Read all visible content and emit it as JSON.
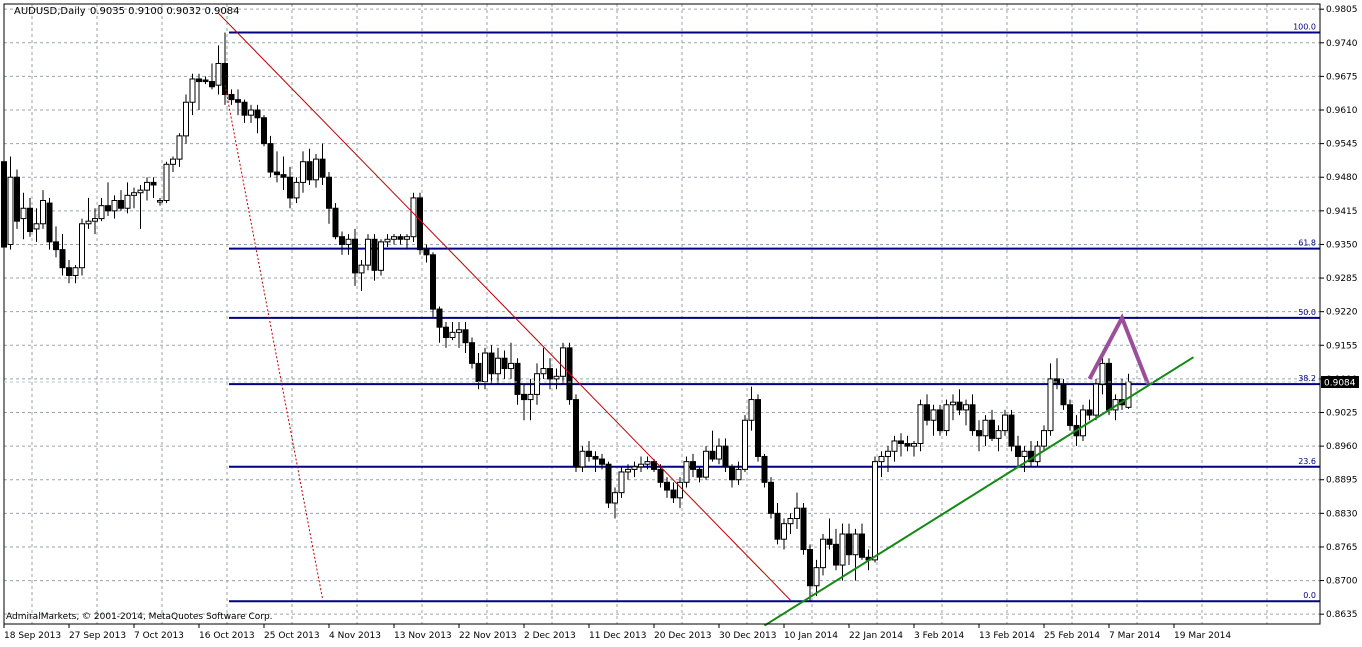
{
  "header": {
    "symbol": "AUDUSD,Daily",
    "ohlc": "0.9035 0.9100 0.9032 0.9084"
  },
  "footer": {
    "copyright": "AdmiralMarkets, © 2001-2014, MetaQuotes Software Corp."
  },
  "colors": {
    "background": "#ffffff",
    "grid": "#9aa3ad",
    "candle": "#000000",
    "fib": "#000080",
    "trend_down": "#c00000",
    "trend_up": "#138a13",
    "projection": "#9b4f9b",
    "price_tag_bg": "#000000",
    "price_tag_text": "#ffffff"
  },
  "chart_data": {
    "type": "candlestick",
    "symbol": "AUDUSD",
    "timeframe": "Daily",
    "current_price": "0.9084",
    "ylim": [
      0.8616,
      0.9815
    ],
    "y_ticks": [
      "0.9805",
      "0.9740",
      "0.9675",
      "0.9610",
      "0.9545",
      "0.9480",
      "0.9415",
      "0.9350",
      "0.9285",
      "0.9220",
      "0.9155",
      "0.9090",
      "0.9025",
      "0.8960",
      "0.8895",
      "0.8830",
      "0.8765",
      "0.8700",
      "0.8635"
    ],
    "x_ticks": [
      "18 Sep 2013",
      "27 Sep 2013",
      "7 Oct 2013",
      "16 Oct 2013",
      "25 Oct 2013",
      "4 Nov 2013",
      "13 Nov 2013",
      "22 Nov 2013",
      "2 Dec 2013",
      "11 Dec 2013",
      "20 Dec 2013",
      "30 Dec 2013",
      "10 Jan 2014",
      "22 Jan 2014",
      "3 Feb 2014",
      "13 Feb 2014",
      "25 Feb 2014",
      "7 Mar 2014",
      "19 Mar 2014"
    ],
    "fibonacci": [
      {
        "label": "100.0",
        "price": 0.976
      },
      {
        "label": "61.8",
        "price": 0.9342
      },
      {
        "label": "50.0",
        "price": 0.9208
      },
      {
        "label": "38.2",
        "price": 0.908
      },
      {
        "label": "23.6",
        "price": 0.892
      },
      {
        "label": "0.0",
        "price": 0.866
      }
    ],
    "trendlines": [
      {
        "name": "down",
        "style": "solid",
        "from": {
          "bar": 33,
          "price": 0.9797
        },
        "to": {
          "bar": 121,
          "price": 0.8662
        }
      },
      {
        "name": "down-steep",
        "style": "dashed",
        "from": {
          "bar": 34,
          "price": 0.9658
        },
        "to": {
          "bar": 49,
          "price": 0.8665
        }
      },
      {
        "name": "up",
        "style": "solid",
        "from": {
          "bar": 117,
          "price": 0.8613
        },
        "to": {
          "bar": 183,
          "price": 0.9132
        }
      }
    ],
    "projection": [
      {
        "bar": 167,
        "price": 0.909
      },
      {
        "bar": 172,
        "price": 0.9208
      },
      {
        "bar": 176,
        "price": 0.908
      }
    ],
    "ohlc": [
      {
        "o": 0.951,
        "h": 0.953,
        "l": 0.9335,
        "c": 0.9345
      },
      {
        "o": 0.935,
        "h": 0.952,
        "l": 0.934,
        "c": 0.948
      },
      {
        "o": 0.948,
        "h": 0.9495,
        "l": 0.938,
        "c": 0.9395
      },
      {
        "o": 0.94,
        "h": 0.945,
        "l": 0.936,
        "c": 0.942
      },
      {
        "o": 0.942,
        "h": 0.944,
        "l": 0.9365,
        "c": 0.9375
      },
      {
        "o": 0.938,
        "h": 0.942,
        "l": 0.9355,
        "c": 0.939
      },
      {
        "o": 0.939,
        "h": 0.9455,
        "l": 0.938,
        "c": 0.9435
      },
      {
        "o": 0.943,
        "h": 0.944,
        "l": 0.934,
        "c": 0.9355
      },
      {
        "o": 0.9355,
        "h": 0.9385,
        "l": 0.9325,
        "c": 0.934
      },
      {
        "o": 0.934,
        "h": 0.937,
        "l": 0.929,
        "c": 0.9305
      },
      {
        "o": 0.9305,
        "h": 0.932,
        "l": 0.9275,
        "c": 0.929
      },
      {
        "o": 0.929,
        "h": 0.931,
        "l": 0.9275,
        "c": 0.9305
      },
      {
        "o": 0.9305,
        "h": 0.94,
        "l": 0.929,
        "c": 0.939
      },
      {
        "o": 0.939,
        "h": 0.944,
        "l": 0.938,
        "c": 0.9395
      },
      {
        "o": 0.9395,
        "h": 0.942,
        "l": 0.937,
        "c": 0.94
      },
      {
        "o": 0.94,
        "h": 0.944,
        "l": 0.9395,
        "c": 0.9425
      },
      {
        "o": 0.9425,
        "h": 0.947,
        "l": 0.9405,
        "c": 0.9415
      },
      {
        "o": 0.9415,
        "h": 0.9445,
        "l": 0.94,
        "c": 0.9435
      },
      {
        "o": 0.9435,
        "h": 0.9455,
        "l": 0.9415,
        "c": 0.942
      },
      {
        "o": 0.942,
        "h": 0.947,
        "l": 0.941,
        "c": 0.9445
      },
      {
        "o": 0.9445,
        "h": 0.946,
        "l": 0.942,
        "c": 0.945
      },
      {
        "o": 0.945,
        "h": 0.9465,
        "l": 0.938,
        "c": 0.9455
      },
      {
        "o": 0.9455,
        "h": 0.948,
        "l": 0.9435,
        "c": 0.947
      },
      {
        "o": 0.947,
        "h": 0.948,
        "l": 0.944,
        "c": 0.9465
      },
      {
        "o": 0.9432,
        "h": 0.944,
        "l": 0.9425,
        "c": 0.9435
      },
      {
        "o": 0.9435,
        "h": 0.951,
        "l": 0.943,
        "c": 0.9505
      },
      {
        "o": 0.9505,
        "h": 0.952,
        "l": 0.949,
        "c": 0.9515
      },
      {
        "o": 0.9515,
        "h": 0.9565,
        "l": 0.95,
        "c": 0.956
      },
      {
        "o": 0.956,
        "h": 0.964,
        "l": 0.9545,
        "c": 0.9625
      },
      {
        "o": 0.9625,
        "h": 0.968,
        "l": 0.96,
        "c": 0.967
      },
      {
        "o": 0.967,
        "h": 0.968,
        "l": 0.961,
        "c": 0.9665
      },
      {
        "o": 0.9668,
        "h": 0.9675,
        "l": 0.966,
        "c": 0.9665
      },
      {
        "o": 0.9665,
        "h": 0.97,
        "l": 0.965,
        "c": 0.9655
      },
      {
        "o": 0.9658,
        "h": 0.9735,
        "l": 0.964,
        "c": 0.97
      },
      {
        "o": 0.97,
        "h": 0.976,
        "l": 0.962,
        "c": 0.964
      },
      {
        "o": 0.964,
        "h": 0.965,
        "l": 0.962,
        "c": 0.963
      },
      {
        "o": 0.963,
        "h": 0.965,
        "l": 0.96,
        "c": 0.9625
      },
      {
        "o": 0.9625,
        "h": 0.963,
        "l": 0.9585,
        "c": 0.96
      },
      {
        "o": 0.96,
        "h": 0.962,
        "l": 0.9585,
        "c": 0.961
      },
      {
        "o": 0.961,
        "h": 0.962,
        "l": 0.9565,
        "c": 0.9595
      },
      {
        "o": 0.9595,
        "h": 0.96,
        "l": 0.954,
        "c": 0.9545
      },
      {
        "o": 0.9545,
        "h": 0.956,
        "l": 0.948,
        "c": 0.949
      },
      {
        "o": 0.949,
        "h": 0.953,
        "l": 0.947,
        "c": 0.9485
      },
      {
        "o": 0.9485,
        "h": 0.952,
        "l": 0.9455,
        "c": 0.948
      },
      {
        "o": 0.948,
        "h": 0.95,
        "l": 0.942,
        "c": 0.944
      },
      {
        "o": 0.944,
        "h": 0.948,
        "l": 0.943,
        "c": 0.947
      },
      {
        "o": 0.947,
        "h": 0.953,
        "l": 0.945,
        "c": 0.951
      },
      {
        "o": 0.951,
        "h": 0.9535,
        "l": 0.9465,
        "c": 0.9475
      },
      {
        "o": 0.9475,
        "h": 0.9525,
        "l": 0.946,
        "c": 0.9515
      },
      {
        "o": 0.9515,
        "h": 0.9545,
        "l": 0.9465,
        "c": 0.948
      },
      {
        "o": 0.948,
        "h": 0.949,
        "l": 0.939,
        "c": 0.942
      },
      {
        "o": 0.942,
        "h": 0.943,
        "l": 0.936,
        "c": 0.9365
      },
      {
        "o": 0.9365,
        "h": 0.9375,
        "l": 0.933,
        "c": 0.935
      },
      {
        "o": 0.935,
        "h": 0.937,
        "l": 0.933,
        "c": 0.936
      },
      {
        "o": 0.936,
        "h": 0.938,
        "l": 0.927,
        "c": 0.9295
      },
      {
        "o": 0.9295,
        "h": 0.932,
        "l": 0.926,
        "c": 0.931
      },
      {
        "o": 0.931,
        "h": 0.937,
        "l": 0.93,
        "c": 0.936
      },
      {
        "o": 0.936,
        "h": 0.937,
        "l": 0.928,
        "c": 0.93
      },
      {
        "o": 0.93,
        "h": 0.936,
        "l": 0.929,
        "c": 0.9355
      },
      {
        "o": 0.9355,
        "h": 0.937,
        "l": 0.9345,
        "c": 0.936
      },
      {
        "o": 0.936,
        "h": 0.937,
        "l": 0.935,
        "c": 0.9365
      },
      {
        "o": 0.9365,
        "h": 0.937,
        "l": 0.935,
        "c": 0.936
      },
      {
        "o": 0.936,
        "h": 0.937,
        "l": 0.934,
        "c": 0.9365
      },
      {
        "o": 0.9365,
        "h": 0.945,
        "l": 0.9355,
        "c": 0.944
      },
      {
        "o": 0.944,
        "h": 0.945,
        "l": 0.933,
        "c": 0.934
      },
      {
        "o": 0.934,
        "h": 0.935,
        "l": 0.9315,
        "c": 0.933
      },
      {
        "o": 0.933,
        "h": 0.9335,
        "l": 0.921,
        "c": 0.9225
      },
      {
        "o": 0.9225,
        "h": 0.923,
        "l": 0.916,
        "c": 0.919
      },
      {
        "o": 0.919,
        "h": 0.92,
        "l": 0.915,
        "c": 0.917
      },
      {
        "o": 0.917,
        "h": 0.92,
        "l": 0.9165,
        "c": 0.918
      },
      {
        "o": 0.918,
        "h": 0.92,
        "l": 0.915,
        "c": 0.9185
      },
      {
        "o": 0.9185,
        "h": 0.92,
        "l": 0.914,
        "c": 0.916
      },
      {
        "o": 0.916,
        "h": 0.917,
        "l": 0.911,
        "c": 0.912
      },
      {
        "o": 0.912,
        "h": 0.914,
        "l": 0.907,
        "c": 0.9085
      },
      {
        "o": 0.9085,
        "h": 0.915,
        "l": 0.907,
        "c": 0.914
      },
      {
        "o": 0.914,
        "h": 0.9155,
        "l": 0.908,
        "c": 0.91
      },
      {
        "o": 0.91,
        "h": 0.915,
        "l": 0.908,
        "c": 0.913
      },
      {
        "o": 0.913,
        "h": 0.9145,
        "l": 0.909,
        "c": 0.911
      },
      {
        "o": 0.911,
        "h": 0.916,
        "l": 0.909,
        "c": 0.912
      },
      {
        "o": 0.912,
        "h": 0.913,
        "l": 0.904,
        "c": 0.906
      },
      {
        "o": 0.906,
        "h": 0.908,
        "l": 0.901,
        "c": 0.905
      },
      {
        "o": 0.905,
        "h": 0.909,
        "l": 0.901,
        "c": 0.906
      },
      {
        "o": 0.906,
        "h": 0.912,
        "l": 0.904,
        "c": 0.91
      },
      {
        "o": 0.91,
        "h": 0.915,
        "l": 0.909,
        "c": 0.911
      },
      {
        "o": 0.911,
        "h": 0.913,
        "l": 0.907,
        "c": 0.909
      },
      {
        "o": 0.909,
        "h": 0.911,
        "l": 0.907,
        "c": 0.9095
      },
      {
        "o": 0.9095,
        "h": 0.916,
        "l": 0.908,
        "c": 0.915
      },
      {
        "o": 0.915,
        "h": 0.916,
        "l": 0.904,
        "c": 0.905
      },
      {
        "o": 0.905,
        "h": 0.906,
        "l": 0.891,
        "c": 0.892
      },
      {
        "o": 0.892,
        "h": 0.896,
        "l": 0.891,
        "c": 0.895
      },
      {
        "o": 0.895,
        "h": 0.897,
        "l": 0.893,
        "c": 0.894
      },
      {
        "o": 0.894,
        "h": 0.895,
        "l": 0.891,
        "c": 0.8935
      },
      {
        "o": 0.8935,
        "h": 0.8945,
        "l": 0.8915,
        "c": 0.8925
      },
      {
        "o": 0.8925,
        "h": 0.893,
        "l": 0.884,
        "c": 0.885
      },
      {
        "o": 0.885,
        "h": 0.888,
        "l": 0.882,
        "c": 0.887
      },
      {
        "o": 0.887,
        "h": 0.892,
        "l": 0.886,
        "c": 0.891
      },
      {
        "o": 0.891,
        "h": 0.8925,
        "l": 0.8895,
        "c": 0.8915
      },
      {
        "o": 0.8915,
        "h": 0.893,
        "l": 0.89,
        "c": 0.892
      },
      {
        "o": 0.892,
        "h": 0.894,
        "l": 0.891,
        "c": 0.8925
      },
      {
        "o": 0.8925,
        "h": 0.894,
        "l": 0.8915,
        "c": 0.893
      },
      {
        "o": 0.893,
        "h": 0.8935,
        "l": 0.891,
        "c": 0.8915
      },
      {
        "o": 0.8915,
        "h": 0.8925,
        "l": 0.888,
        "c": 0.889
      },
      {
        "o": 0.889,
        "h": 0.89,
        "l": 0.886,
        "c": 0.8875
      },
      {
        "o": 0.8875,
        "h": 0.889,
        "l": 0.885,
        "c": 0.886
      },
      {
        "o": 0.886,
        "h": 0.89,
        "l": 0.884,
        "c": 0.889
      },
      {
        "o": 0.889,
        "h": 0.894,
        "l": 0.888,
        "c": 0.893
      },
      {
        "o": 0.893,
        "h": 0.8945,
        "l": 0.89,
        "c": 0.8915
      },
      {
        "o": 0.8915,
        "h": 0.892,
        "l": 0.889,
        "c": 0.89
      },
      {
        "o": 0.89,
        "h": 0.896,
        "l": 0.8895,
        "c": 0.895
      },
      {
        "o": 0.895,
        "h": 0.899,
        "l": 0.893,
        "c": 0.8935
      },
      {
        "o": 0.8935,
        "h": 0.8975,
        "l": 0.8925,
        "c": 0.896
      },
      {
        "o": 0.896,
        "h": 0.8975,
        "l": 0.891,
        "c": 0.892
      },
      {
        "o": 0.892,
        "h": 0.8925,
        "l": 0.888,
        "c": 0.8895
      },
      {
        "o": 0.8895,
        "h": 0.893,
        "l": 0.8885,
        "c": 0.8915
      },
      {
        "o": 0.8915,
        "h": 0.902,
        "l": 0.891,
        "c": 0.901
      },
      {
        "o": 0.901,
        "h": 0.9075,
        "l": 0.899,
        "c": 0.905
      },
      {
        "o": 0.905,
        "h": 0.906,
        "l": 0.893,
        "c": 0.894
      },
      {
        "o": 0.894,
        "h": 0.8945,
        "l": 0.888,
        "c": 0.889
      },
      {
        "o": 0.889,
        "h": 0.89,
        "l": 0.882,
        "c": 0.883
      },
      {
        "o": 0.883,
        "h": 0.885,
        "l": 0.877,
        "c": 0.878
      },
      {
        "o": 0.878,
        "h": 0.882,
        "l": 0.876,
        "c": 0.881
      },
      {
        "o": 0.881,
        "h": 0.883,
        "l": 0.879,
        "c": 0.882
      },
      {
        "o": 0.882,
        "h": 0.887,
        "l": 0.88,
        "c": 0.884
      },
      {
        "o": 0.884,
        "h": 0.885,
        "l": 0.875,
        "c": 0.876
      },
      {
        "o": 0.876,
        "h": 0.877,
        "l": 0.866,
        "c": 0.869
      },
      {
        "o": 0.869,
        "h": 0.874,
        "l": 0.867,
        "c": 0.8725
      },
      {
        "o": 0.8725,
        "h": 0.879,
        "l": 0.871,
        "c": 0.878
      },
      {
        "o": 0.878,
        "h": 0.882,
        "l": 0.876,
        "c": 0.877
      },
      {
        "o": 0.877,
        "h": 0.88,
        "l": 0.872,
        "c": 0.873
      },
      {
        "o": 0.873,
        "h": 0.881,
        "l": 0.87,
        "c": 0.879
      },
      {
        "o": 0.879,
        "h": 0.881,
        "l": 0.873,
        "c": 0.875
      },
      {
        "o": 0.875,
        "h": 0.88,
        "l": 0.87,
        "c": 0.879
      },
      {
        "o": 0.879,
        "h": 0.881,
        "l": 0.874,
        "c": 0.8745
      },
      {
        "o": 0.8745,
        "h": 0.876,
        "l": 0.872,
        "c": 0.874
      },
      {
        "o": 0.874,
        "h": 0.894,
        "l": 0.8735,
        "c": 0.893
      },
      {
        "o": 0.893,
        "h": 0.895,
        "l": 0.89,
        "c": 0.894
      },
      {
        "o": 0.894,
        "h": 0.896,
        "l": 0.891,
        "c": 0.895
      },
      {
        "o": 0.895,
        "h": 0.898,
        "l": 0.893,
        "c": 0.897
      },
      {
        "o": 0.897,
        "h": 0.8985,
        "l": 0.894,
        "c": 0.8965
      },
      {
        "o": 0.8965,
        "h": 0.898,
        "l": 0.895,
        "c": 0.896
      },
      {
        "o": 0.896,
        "h": 0.897,
        "l": 0.894,
        "c": 0.8965
      },
      {
        "o": 0.8965,
        "h": 0.905,
        "l": 0.895,
        "c": 0.904
      },
      {
        "o": 0.904,
        "h": 0.906,
        "l": 0.9,
        "c": 0.901
      },
      {
        "o": 0.901,
        "h": 0.904,
        "l": 0.898,
        "c": 0.903
      },
      {
        "o": 0.903,
        "h": 0.904,
        "l": 0.898,
        "c": 0.899
      },
      {
        "o": 0.899,
        "h": 0.905,
        "l": 0.898,
        "c": 0.904
      },
      {
        "o": 0.904,
        "h": 0.906,
        "l": 0.901,
        "c": 0.9045
      },
      {
        "o": 0.9045,
        "h": 0.907,
        "l": 0.902,
        "c": 0.903
      },
      {
        "o": 0.903,
        "h": 0.905,
        "l": 0.9,
        "c": 0.904
      },
      {
        "o": 0.904,
        "h": 0.906,
        "l": 0.898,
        "c": 0.899
      },
      {
        "o": 0.899,
        "h": 0.901,
        "l": 0.895,
        "c": 0.898
      },
      {
        "o": 0.898,
        "h": 0.902,
        "l": 0.896,
        "c": 0.901
      },
      {
        "o": 0.901,
        "h": 0.903,
        "l": 0.897,
        "c": 0.8975
      },
      {
        "o": 0.8975,
        "h": 0.9,
        "l": 0.895,
        "c": 0.899
      },
      {
        "o": 0.899,
        "h": 0.903,
        "l": 0.898,
        "c": 0.902
      },
      {
        "o": 0.902,
        "h": 0.903,
        "l": 0.895,
        "c": 0.896
      },
      {
        "o": 0.896,
        "h": 0.898,
        "l": 0.892,
        "c": 0.894
      },
      {
        "o": 0.894,
        "h": 0.896,
        "l": 0.891,
        "c": 0.895
      },
      {
        "o": 0.895,
        "h": 0.897,
        "l": 0.892,
        "c": 0.893
      },
      {
        "o": 0.893,
        "h": 0.897,
        "l": 0.892,
        "c": 0.896
      },
      {
        "o": 0.896,
        "h": 0.9,
        "l": 0.895,
        "c": 0.899
      },
      {
        "o": 0.899,
        "h": 0.912,
        "l": 0.898,
        "c": 0.909
      },
      {
        "o": 0.909,
        "h": 0.913,
        "l": 0.907,
        "c": 0.908
      },
      {
        "o": 0.908,
        "h": 0.909,
        "l": 0.903,
        "c": 0.904
      },
      {
        "o": 0.904,
        "h": 0.905,
        "l": 0.899,
        "c": 0.9
      },
      {
        "o": 0.9,
        "h": 0.902,
        "l": 0.896,
        "c": 0.898
      },
      {
        "o": 0.898,
        "h": 0.904,
        "l": 0.897,
        "c": 0.903
      },
      {
        "o": 0.903,
        "h": 0.905,
        "l": 0.901,
        "c": 0.902
      },
      {
        "o": 0.902,
        "h": 0.909,
        "l": 0.901,
        "c": 0.908
      },
      {
        "o": 0.908,
        "h": 0.914,
        "l": 0.906,
        "c": 0.912
      },
      {
        "o": 0.912,
        "h": 0.913,
        "l": 0.902,
        "c": 0.903
      },
      {
        "o": 0.903,
        "h": 0.906,
        "l": 0.901,
        "c": 0.905
      },
      {
        "o": 0.905,
        "h": 0.909,
        "l": 0.903,
        "c": 0.904
      },
      {
        "o": 0.9035,
        "h": 0.91,
        "l": 0.9032,
        "c": 0.9084
      }
    ]
  }
}
